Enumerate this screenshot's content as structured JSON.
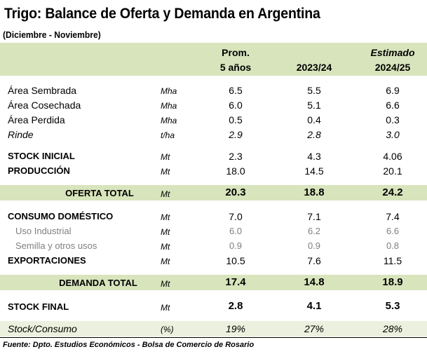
{
  "title": "Trigo: Balance de Oferta y Demanda en Argentina",
  "subtitle": "(Diciembre - Noviembre)",
  "columns": {
    "c1_line1": "Prom.",
    "c1_line2": "5 años",
    "c2_line2": "2023/24",
    "c3_line1": "Estimado",
    "c3_line2": "2024/25"
  },
  "rows": {
    "area_sembrada": {
      "label": "Área Sembrada",
      "unit": "Mha",
      "c1": "6.5",
      "c2": "5.5",
      "c3": "6.9"
    },
    "area_cosechada": {
      "label": "Área Cosechada",
      "unit": "Mha",
      "c1": "6.0",
      "c2": "5.1",
      "c3": "6.6"
    },
    "area_perdida": {
      "label": "Área Perdida",
      "unit": "Mha",
      "c1": "0.5",
      "c2": "0.4",
      "c3": "0.3"
    },
    "rinde": {
      "label": "Rinde",
      "unit": "t/ha",
      "c1": "2.9",
      "c2": "2.8",
      "c3": "3.0"
    },
    "stock_inicial": {
      "label": "STOCK INICIAL",
      "unit": "Mt",
      "c1": "2.3",
      "c2": "4.3",
      "c3": "4.06"
    },
    "produccion": {
      "label": "PRODUCCIÓN",
      "unit": "Mt",
      "c1": "18.0",
      "c2": "14.5",
      "c3": "20.1"
    },
    "oferta_total": {
      "label": "OFERTA TOTAL",
      "unit": "Mt",
      "c1": "20.3",
      "c2": "18.8",
      "c3": "24.2"
    },
    "consumo_domestico": {
      "label": "CONSUMO DOMÉSTICO",
      "unit": "Mt",
      "c1": "7.0",
      "c2": "7.1",
      "c3": "7.4"
    },
    "uso_industrial": {
      "label": "Uso Industrial",
      "unit": "Mt",
      "c1": "6.0",
      "c2": "6.2",
      "c3": "6.6"
    },
    "semilla": {
      "label": "Semilla y otros usos",
      "unit": "Mt",
      "c1": "0.9",
      "c2": "0.9",
      "c3": "0.8"
    },
    "exportaciones": {
      "label": "EXPORTACIONES",
      "unit": "Mt",
      "c1": "10.5",
      "c2": "7.6",
      "c3": "11.5"
    },
    "demanda_total": {
      "label": "DEMANDA TOTAL",
      "unit": "Mt",
      "c1": "17.4",
      "c2": "14.8",
      "c3": "18.9"
    },
    "stock_final": {
      "label": "STOCK FINAL",
      "unit": "Mt",
      "c1": "2.8",
      "c2": "4.1",
      "c3": "5.3"
    },
    "stock_consumo": {
      "label": "Stock/Consumo",
      "unit": "(%)",
      "c1": "19%",
      "c2": "27%",
      "c3": "28%"
    }
  },
  "source": "Fuente: Dpto. Estudios Económicos - Bolsa de Comercio de Rosario",
  "colors": {
    "header_band": "#d8e4bc",
    "total_band": "#d8e4bc",
    "light_band": "#ebf1de",
    "grey_text": "#7f7f7f"
  }
}
